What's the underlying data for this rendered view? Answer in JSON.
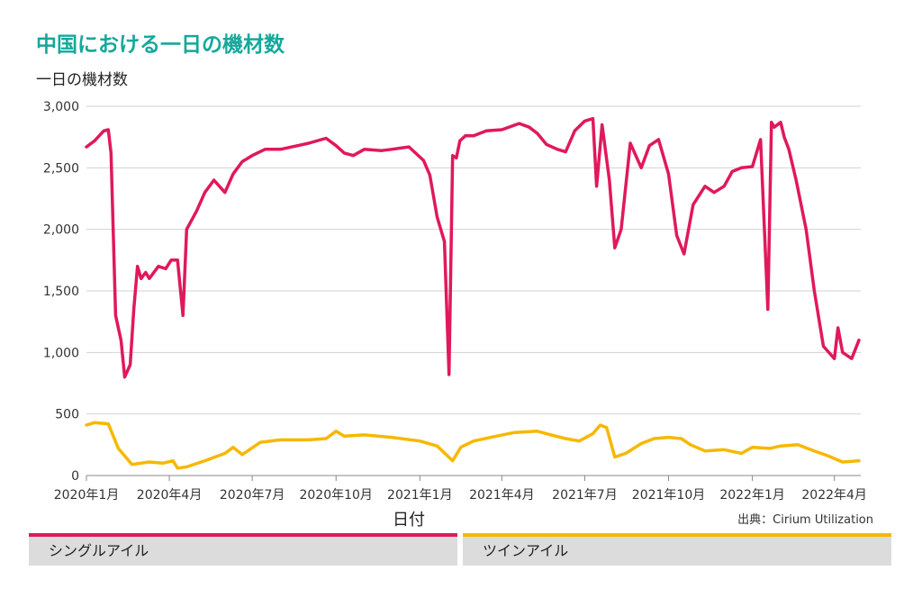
{
  "title": "中国における一日の機材数",
  "source": "出典：Cirium Utilization",
  "legend": {
    "single": "シングルアイル",
    "twin": "ツインアイル"
  },
  "chart_data": {
    "type": "line",
    "title": "中国における一日の機材数",
    "ylabel": "一日の機材数",
    "xlabel": "日付",
    "ylim": [
      0,
      3000
    ],
    "yticks": [
      0,
      500,
      1000,
      1500,
      2000,
      2500,
      3000
    ],
    "ytick_labels": [
      "0",
      "500",
      "1,000",
      "1,500",
      "2,000",
      "2,500",
      "3,000"
    ],
    "xlim": [
      "2020-01-01",
      "2022-04-30"
    ],
    "xticks": [
      "2020-01-01",
      "2020-04-01",
      "2020-07-01",
      "2020-10-01",
      "2021-01-01",
      "2021-04-01",
      "2021-07-01",
      "2021-10-01",
      "2022-01-01",
      "2022-04-01"
    ],
    "xtick_labels": [
      "2020年1月",
      "2020年4月",
      "2020年7月",
      "2020年10月",
      "2021年1月",
      "2021年4月",
      "2021年7月",
      "2021年10月",
      "2022年1月",
      "2022年4月"
    ],
    "grid": true,
    "series": [
      {
        "name": "シングルアイル",
        "color": "#e0195a",
        "x": [
          "2020-01-01",
          "2020-01-10",
          "2020-01-20",
          "2020-01-25",
          "2020-01-28",
          "2020-02-02",
          "2020-02-08",
          "2020-02-12",
          "2020-02-18",
          "2020-02-22",
          "2020-02-26",
          "2020-03-01",
          "2020-03-06",
          "2020-03-10",
          "2020-03-20",
          "2020-03-28",
          "2020-04-03",
          "2020-04-10",
          "2020-04-16",
          "2020-04-20",
          "2020-05-01",
          "2020-05-10",
          "2020-05-20",
          "2020-06-01",
          "2020-06-10",
          "2020-06-20",
          "2020-07-01",
          "2020-07-15",
          "2020-08-01",
          "2020-08-20",
          "2020-09-01",
          "2020-09-20",
          "2020-10-01",
          "2020-10-10",
          "2020-10-20",
          "2020-11-01",
          "2020-11-20",
          "2020-12-01",
          "2020-12-20",
          "2021-01-05",
          "2021-01-12",
          "2021-01-20",
          "2021-01-28",
          "2021-02-02",
          "2021-02-06",
          "2021-02-10",
          "2021-02-14",
          "2021-02-20",
          "2021-03-01",
          "2021-03-15",
          "2021-04-01",
          "2021-04-20",
          "2021-05-01",
          "2021-05-10",
          "2021-05-20",
          "2021-06-01",
          "2021-06-10",
          "2021-06-20",
          "2021-07-01",
          "2021-07-10",
          "2021-07-14",
          "2021-07-20",
          "2021-07-28",
          "2021-08-03",
          "2021-08-10",
          "2021-08-20",
          "2021-09-01",
          "2021-09-10",
          "2021-09-20",
          "2021-10-01",
          "2021-10-10",
          "2021-10-18",
          "2021-10-28",
          "2021-11-10",
          "2021-11-20",
          "2021-12-01",
          "2021-12-10",
          "2021-12-20",
          "2022-01-01",
          "2022-01-10",
          "2022-01-18",
          "2022-01-22",
          "2022-01-25",
          "2022-02-01",
          "2022-02-05",
          "2022-02-10",
          "2022-02-18",
          "2022-03-01",
          "2022-03-10",
          "2022-03-20",
          "2022-04-01",
          "2022-04-05",
          "2022-04-10",
          "2022-04-20",
          "2022-04-28"
        ],
        "y": [
          2670,
          2720,
          2800,
          2810,
          2620,
          1300,
          1100,
          800,
          900,
          1350,
          1700,
          1600,
          1650,
          1600,
          1700,
          1680,
          1750,
          1750,
          1300,
          2000,
          2150,
          2300,
          2400,
          2300,
          2450,
          2550,
          2600,
          2650,
          2650,
          2680,
          2700,
          2740,
          2680,
          2620,
          2600,
          2650,
          2640,
          2650,
          2670,
          2560,
          2440,
          2100,
          1900,
          820,
          2600,
          2580,
          2720,
          2760,
          2760,
          2800,
          2810,
          2860,
          2830,
          2780,
          2690,
          2650,
          2630,
          2800,
          2880,
          2900,
          2350,
          2850,
          2400,
          1850,
          2000,
          2700,
          2500,
          2680,
          2730,
          2450,
          1950,
          1800,
          2200,
          2350,
          2300,
          2350,
          2470,
          2500,
          2510,
          2730,
          1350,
          2870,
          2830,
          2870,
          2750,
          2650,
          2400,
          2000,
          1500,
          1050,
          950,
          1200,
          1000,
          950,
          1100
        ]
      },
      {
        "name": "ツインアイル",
        "color": "#f6b800",
        "x": [
          "2020-01-01",
          "2020-01-10",
          "2020-01-25",
          "2020-02-05",
          "2020-02-20",
          "2020-03-10",
          "2020-03-25",
          "2020-04-05",
          "2020-04-10",
          "2020-04-20",
          "2020-05-10",
          "2020-06-01",
          "2020-06-10",
          "2020-06-20",
          "2020-07-10",
          "2020-08-01",
          "2020-09-01",
          "2020-09-20",
          "2020-10-01",
          "2020-10-10",
          "2020-11-01",
          "2020-12-01",
          "2021-01-01",
          "2021-01-20",
          "2021-02-06",
          "2021-02-15",
          "2021-03-01",
          "2021-03-20",
          "2021-04-15",
          "2021-05-10",
          "2021-05-25",
          "2021-06-10",
          "2021-06-25",
          "2021-07-10",
          "2021-07-18",
          "2021-07-25",
          "2021-08-03",
          "2021-08-15",
          "2021-09-01",
          "2021-09-15",
          "2021-10-01",
          "2021-10-15",
          "2021-10-25",
          "2021-11-10",
          "2021-12-01",
          "2021-12-20",
          "2022-01-01",
          "2022-01-20",
          "2022-02-01",
          "2022-02-20",
          "2022-03-10",
          "2022-03-25",
          "2022-04-10",
          "2022-04-28"
        ],
        "y": [
          410,
          430,
          420,
          220,
          90,
          110,
          100,
          120,
          60,
          70,
          120,
          180,
          230,
          170,
          270,
          290,
          290,
          300,
          360,
          320,
          330,
          310,
          280,
          240,
          120,
          230,
          280,
          310,
          350,
          360,
          330,
          300,
          280,
          340,
          410,
          390,
          150,
          180,
          260,
          300,
          310,
          300,
          250,
          200,
          210,
          180,
          230,
          220,
          240,
          250,
          200,
          160,
          110,
          120
        ]
      }
    ]
  }
}
